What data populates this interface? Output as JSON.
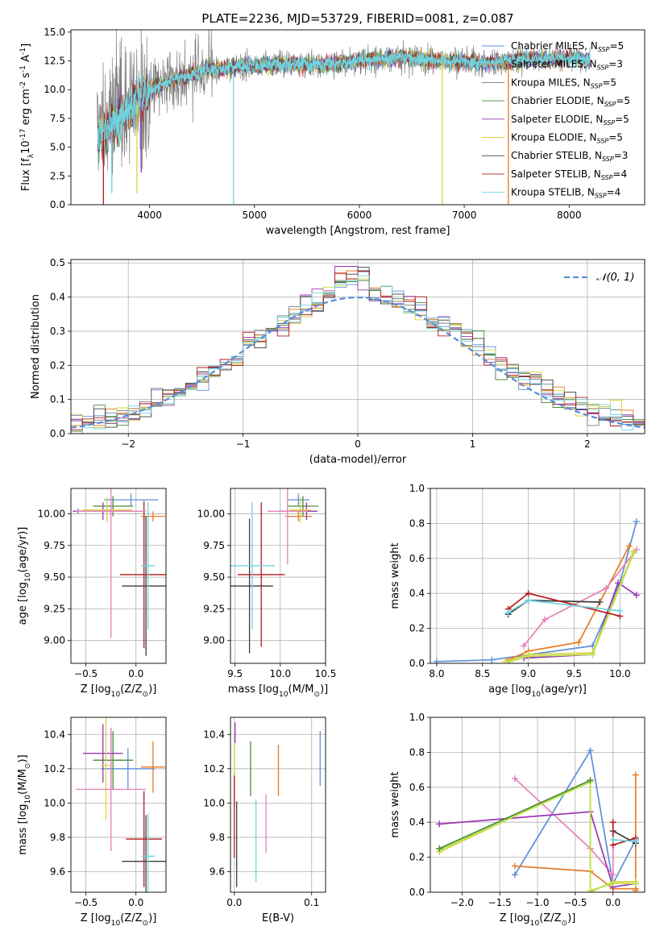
{
  "figure": {
    "title": "PLATE=2236, MJD=53729, FIBERID=0081, z=0.087"
  },
  "colors": {
    "Chabrier MILES": "#5b8fd9",
    "Salpeter MILES": "#e87a23",
    "Kroupa MILES": "#7a7a7a",
    "Chabrier ELODIE": "#4c8a3a",
    "Salpeter ELODIE": "#9a35b5",
    "Kroupa ELODIE": "#d8d33f",
    "Chabrier STELIB": "#3d3d3d",
    "Salpeter STELIB": "#b31b1b",
    "Kroupa STELIB": "#6fd3e0",
    "pink": "#e67fb8",
    "lime": "#b8e34a",
    "gaussian": "#5b8fd9"
  },
  "chart_data": [
    {
      "id": "spectrum",
      "type": "line",
      "xlabel": "wavelength [Angstrom, rest frame]",
      "ylabel": "Flux [f$_\\lambda$10$^{-17}$ erg cm$^{-2}$ s$^{-1}$ A$^{-1}$]",
      "xlim": [
        3250,
        8720
      ],
      "ylim": [
        0,
        15.2
      ],
      "xticks": [
        4000,
        5000,
        6000,
        7000,
        8000
      ],
      "yticks": [
        0.0,
        2.5,
        5.0,
        7.5,
        10.0,
        12.5,
        15.0
      ],
      "xtick_labels": [
        "4000",
        "5000",
        "6000",
        "7000",
        "8000"
      ],
      "ytick_labels": [
        "0.0",
        "2.5",
        "5.0",
        "7.5",
        "10.0",
        "12.5",
        "15.0"
      ],
      "legend_position": "right",
      "legend": [
        {
          "text": "Chabrier MILES, N",
          "sub": "SSP",
          "suffix": "=5",
          "key": "Chabrier MILES"
        },
        {
          "text": "Salpeter MILES, N",
          "sub": "SSP",
          "suffix": "=3",
          "key": "Salpeter MILES"
        },
        {
          "text": "Kroupa MILES, N",
          "sub": "SSP",
          "suffix": "=5",
          "key": "Kroupa MILES"
        },
        {
          "text": "Chabrier ELODIE, N",
          "sub": "SSP",
          "suffix": "=5",
          "key": "Chabrier ELODIE"
        },
        {
          "text": "Salpeter ELODIE, N",
          "sub": "SSP",
          "suffix": "=5",
          "key": "Salpeter ELODIE"
        },
        {
          "text": "Kroupa ELODIE, N",
          "sub": "SSP",
          "suffix": "=5",
          "key": "Kroupa ELODIE"
        },
        {
          "text": "Chabrier STELIB, N",
          "sub": "SSP",
          "suffix": "=3",
          "key": "Chabrier STELIB"
        },
        {
          "text": "Salpeter STELIB, N",
          "sub": "SSP",
          "suffix": "=4",
          "key": "Salpeter STELIB"
        },
        {
          "text": "Kroupa STELIB, N",
          "sub": "SSP",
          "suffix": "=4",
          "key": "Kroupa STELIB"
        }
      ],
      "continuum": [
        [
          3500,
          6.0
        ],
        [
          3650,
          6.8
        ],
        [
          3800,
          8.3
        ],
        [
          3950,
          9.5
        ],
        [
          4100,
          10.5
        ],
        [
          4300,
          11.0
        ],
        [
          4500,
          11.6
        ],
        [
          4800,
          12.0
        ],
        [
          5200,
          12.2
        ],
        [
          5600,
          12.2
        ],
        [
          6000,
          12.5
        ],
        [
          6400,
          12.8
        ],
        [
          6800,
          12.5
        ],
        [
          7200,
          12.3
        ],
        [
          7600,
          12.6
        ],
        [
          8000,
          12.7
        ],
        [
          8200,
          12.6
        ]
      ],
      "data_start": 3500,
      "data_end": 8200,
      "dips": [
        {
          "x": 3560,
          "y": 0.0,
          "series": "Salpeter STELIB"
        },
        {
          "x": 3640,
          "y": 1.0,
          "series": "Kroupa STELIB"
        },
        {
          "x": 3880,
          "y": 1.0,
          "series": "Kroupa ELODIE"
        },
        {
          "x": 3920,
          "y": 2.8,
          "series": "Salpeter ELODIE"
        },
        {
          "x": 4800,
          "y": 0.0,
          "series": "Kroupa STELIB"
        },
        {
          "x": 6790,
          "y": 0.0,
          "series": "Kroupa ELODIE"
        },
        {
          "x": 7420,
          "y": 0.0,
          "series": "Salpeter MILES"
        }
      ]
    },
    {
      "id": "residuals",
      "type": "line",
      "xlabel": "(data-model)/error",
      "ylabel": "Normed distribution",
      "xlim": [
        -2.5,
        2.5
      ],
      "ylim": [
        0,
        0.51
      ],
      "xticks": [
        -2,
        -1,
        0,
        1,
        2
      ],
      "yticks": [
        0.0,
        0.1,
        0.2,
        0.3,
        0.4,
        0.5
      ],
      "xtick_labels": [
        "−2",
        "−1",
        "0",
        "1",
        "2"
      ],
      "ytick_labels": [
        "0.0",
        "0.1",
        "0.2",
        "0.3",
        "0.4",
        "0.5"
      ],
      "legend_position": "top-right",
      "legend_label": "𝒩(0, 1)",
      "bin_width": 0.1,
      "bin_start": -2.5,
      "n_bins": 50,
      "series_keys": [
        "Chabrier MILES",
        "Salpeter MILES",
        "Kroupa MILES",
        "Chabrier ELODIE",
        "Salpeter ELODIE",
        "Kroupa ELODIE",
        "Chabrier STELIB",
        "Salpeter STELIB",
        "Kroupa STELIB"
      ]
    },
    {
      "id": "age_vs_Z",
      "type": "scatter",
      "xlabel": "Z [log$_{10}$(Z/Z$_\\odot$)]",
      "ylabel": "age  [log$_{10}$(age/yr)]",
      "xlim": [
        -0.65,
        0.3
      ],
      "ylim": [
        8.82,
        10.2
      ],
      "xticks": [
        -0.5,
        0.0
      ],
      "yticks": [
        9.0,
        9.25,
        9.5,
        9.75,
        10.0
      ],
      "xtick_labels": [
        "−0.5",
        "0.0"
      ],
      "ytick_labels": [
        "9.00",
        "9.25",
        "9.50",
        "9.75",
        "10.00"
      ],
      "points": [
        {
          "series": "Chabrier MILES",
          "x": -0.05,
          "xerr": 0.27,
          "y": 10.11,
          "yerr": 0.05
        },
        {
          "series": "Salpeter MILES",
          "x": 0.17,
          "xerr": 0.12,
          "y": 9.98,
          "yerr": 0.04
        },
        {
          "series": "Kroupa MILES",
          "x": -0.58,
          "xerr": 0.02,
          "y": 10.02,
          "yerr": 0.02
        },
        {
          "series": "Chabrier ELODIE",
          "x": -0.23,
          "xerr": 0.2,
          "y": 10.06,
          "yerr": 0.08
        },
        {
          "series": "Salpeter ELODIE",
          "x": -0.33,
          "xerr": 0.3,
          "y": 10.02,
          "yerr": 0.07
        },
        {
          "series": "Kroupa ELODIE",
          "x": -0.29,
          "xerr": 0.25,
          "y": 10.03,
          "yerr": 0.1
        },
        {
          "series": "Chabrier STELIB",
          "x": 0.1,
          "xerr": 0.24,
          "y": 9.43,
          "yerr": 0.55
        },
        {
          "series": "Salpeter STELIB",
          "x": 0.08,
          "xerr": 0.24,
          "y": 9.52,
          "yerr": 0.58
        },
        {
          "series": "Kroupa STELIB",
          "x": 0.12,
          "xerr": 0.07,
          "y": 9.59,
          "yerr": 0.5
        },
        {
          "series": "pink",
          "x": -0.25,
          "xerr": 0.35,
          "y": 10.02,
          "yerr": 1.0
        }
      ]
    },
    {
      "id": "age_vs_mass",
      "type": "scatter",
      "xlabel": "mass [log$_{10}$(M/M$_\\odot$)]",
      "ylabel": "",
      "xlim": [
        9.45,
        10.5
      ],
      "ylim": [
        8.82,
        10.2
      ],
      "xticks": [
        9.5,
        10.0,
        10.5
      ],
      "yticks": [
        9.0,
        9.25,
        9.5,
        9.75,
        10.0
      ],
      "xtick_labels": [
        "9.5",
        "10.0",
        "10.5"
      ],
      "ytick_labels": [
        "9.00",
        "9.25",
        "9.50",
        "9.75",
        "10.00"
      ],
      "points": [
        {
          "series": "Chabrier MILES",
          "x": 10.2,
          "xerr": 0.12,
          "y": 10.11,
          "yerr": 0.05
        },
        {
          "series": "Salpeter MILES",
          "x": 10.2,
          "xerr": 0.15,
          "y": 9.98,
          "yerr": 0.04
        },
        {
          "series": "Kroupa MILES",
          "x": 10.08,
          "xerr": 0.1,
          "y": 10.02,
          "yerr": 0.02
        },
        {
          "series": "Chabrier ELODIE",
          "x": 10.25,
          "xerr": 0.17,
          "y": 10.06,
          "yerr": 0.08
        },
        {
          "series": "Salpeter ELODIE",
          "x": 10.29,
          "xerr": 0.12,
          "y": 10.02,
          "yerr": 0.07
        },
        {
          "series": "Kroupa ELODIE",
          "x": 10.22,
          "xerr": 0.12,
          "y": 10.03,
          "yerr": 0.1
        },
        {
          "series": "Chabrier STELIB",
          "x": 9.66,
          "xerr": 0.26,
          "y": 9.43,
          "yerr": 0.53
        },
        {
          "series": "Salpeter STELIB",
          "x": 9.79,
          "xerr": 0.26,
          "y": 9.52,
          "yerr": 0.57
        },
        {
          "series": "Kroupa STELIB",
          "x": 9.69,
          "xerr": 0.25,
          "y": 9.59,
          "yerr": 0.5
        },
        {
          "series": "pink",
          "x": 10.08,
          "xerr": 0.22,
          "y": 10.02,
          "yerr": 0.42
        }
      ]
    },
    {
      "id": "weight_vs_age",
      "type": "line",
      "xlabel": "age  [log$_{10}$(age/yr)]",
      "ylabel": "mass weight",
      "xlim": [
        7.93,
        10.27
      ],
      "ylim": [
        0,
        1.0
      ],
      "xticks": [
        8.0,
        8.5,
        9.0,
        9.5,
        10.0
      ],
      "yticks": [
        0.0,
        0.2,
        0.4,
        0.6,
        0.8,
        1.0
      ],
      "xtick_labels": [
        "8.0",
        "8.5",
        "9.0",
        "9.5",
        "10.0"
      ],
      "ytick_labels": [
        "0.0",
        "0.2",
        "0.4",
        "0.6",
        "0.8",
        "1.0"
      ],
      "series": [
        {
          "key": "Chabrier MILES",
          "x": [
            8.0,
            8.6,
            9.7,
            10.0,
            10.18
          ],
          "y": [
            0.01,
            0.02,
            0.1,
            0.46,
            0.81
          ]
        },
        {
          "key": "Salpeter MILES",
          "x": [
            8.78,
            9.0,
            9.55,
            10.1
          ],
          "y": [
            0.02,
            0.07,
            0.12,
            0.67
          ]
        },
        {
          "key": "pink",
          "x": [
            8.95,
            9.18,
            9.85,
            10.18
          ],
          "y": [
            0.1,
            0.25,
            0.43,
            0.65
          ]
        },
        {
          "key": "Salpeter ELODIE",
          "x": [
            8.95,
            9.7,
            9.98,
            10.18
          ],
          "y": [
            0.03,
            0.05,
            0.46,
            0.39
          ]
        },
        {
          "key": "Kroupa ELODIE",
          "x": [
            8.75,
            9.0,
            9.7,
            10.15
          ],
          "y": [
            0.01,
            0.05,
            0.06,
            0.64
          ]
        },
        {
          "key": "lime",
          "x": [
            8.8,
            9.0,
            9.7,
            10.15
          ],
          "y": [
            0.01,
            0.04,
            0.05,
            0.63
          ]
        },
        {
          "key": "Chabrier STELIB",
          "x": [
            8.78,
            9.0,
            9.78
          ],
          "y": [
            0.28,
            0.36,
            0.35
          ]
        },
        {
          "key": "Salpeter STELIB",
          "x": [
            8.78,
            9.0,
            10.0
          ],
          "y": [
            0.31,
            0.4,
            0.27
          ]
        },
        {
          "key": "Kroupa STELIB",
          "x": [
            8.78,
            9.0,
            10.0
          ],
          "y": [
            0.29,
            0.36,
            0.3
          ]
        }
      ]
    },
    {
      "id": "mass_vs_Z",
      "type": "scatter",
      "xlabel": "Z [log$_{10}$(Z/Z$_\\odot$)]",
      "ylabel": "mass [log$_{10}$(M/M$_\\odot$)]",
      "xlim": [
        -0.65,
        0.3
      ],
      "ylim": [
        9.48,
        10.5
      ],
      "xticks": [
        -0.5,
        0.0
      ],
      "yticks": [
        9.6,
        9.8,
        10.0,
        10.2,
        10.4
      ],
      "xtick_labels": [
        "−0.5",
        "0.0"
      ],
      "ytick_labels": [
        "9.6",
        "9.8",
        "10.0",
        "10.2",
        "10.4"
      ],
      "points": [
        {
          "series": "Chabrier MILES",
          "x": -0.08,
          "xerr": 0.27,
          "y": 10.2,
          "yerr": 0.12
        },
        {
          "series": "Salpeter MILES",
          "x": 0.17,
          "xerr": 0.12,
          "y": 10.21,
          "yerr": 0.15
        },
        {
          "series": "Kroupa MILES",
          "x": -0.25,
          "xerr": 0.1,
          "y": 10.25,
          "yerr": 0.17
        },
        {
          "series": "Chabrier ELODIE",
          "x": -0.23,
          "xerr": 0.2,
          "y": 10.25,
          "yerr": 0.17
        },
        {
          "series": "Salpeter ELODIE",
          "x": -0.33,
          "xerr": 0.2,
          "y": 10.29,
          "yerr": 0.17
        },
        {
          "series": "Kroupa ELODIE",
          "x": -0.3,
          "xerr": 0.05,
          "y": 10.22,
          "yerr": 0.32
        },
        {
          "series": "Chabrier STELIB",
          "x": 0.1,
          "xerr": 0.24,
          "y": 9.66,
          "yerr": 0.27
        },
        {
          "series": "Salpeter STELIB",
          "x": 0.08,
          "xerr": 0.18,
          "y": 9.79,
          "yerr": 0.28
        },
        {
          "series": "Kroupa STELIB",
          "x": 0.12,
          "xerr": 0.07,
          "y": 9.69,
          "yerr": 0.25
        },
        {
          "series": "pink",
          "x": -0.25,
          "xerr": 0.35,
          "y": 10.08,
          "yerr": 0.36
        }
      ]
    },
    {
      "id": "mass_vs_ebv",
      "type": "scatter",
      "xlabel": "E(B-V)",
      "ylabel": "",
      "xlim": [
        -0.005,
        0.118
      ],
      "ylim": [
        9.48,
        10.5
      ],
      "xticks": [
        0.0,
        0.1
      ],
      "yticks": [
        9.6,
        9.8,
        10.0,
        10.2,
        10.4
      ],
      "xtick_labels": [
        "0.0",
        "0.1"
      ],
      "ytick_labels": [
        "9.6",
        "9.8",
        "10.0",
        "10.2",
        "10.4"
      ],
      "points": [
        {
          "series": "Chabrier MILES",
          "x": 0.111,
          "xerr": 0,
          "y": 10.26,
          "yerr": 0.16
        },
        {
          "series": "Salpeter MILES",
          "x": 0.057,
          "xerr": 0,
          "y": 10.19,
          "yerr": 0.15
        },
        {
          "series": "Kroupa MILES",
          "x": 0.0,
          "xerr": 0,
          "y": 10.08,
          "yerr": 0.1
        },
        {
          "series": "Chabrier ELODIE",
          "x": 0.021,
          "xerr": 0,
          "y": 10.2,
          "yerr": 0.16
        },
        {
          "series": "Salpeter ELODIE",
          "x": 0.001,
          "xerr": 0,
          "y": 10.41,
          "yerr": 0.06
        },
        {
          "series": "Kroupa ELODIE",
          "x": 0.0,
          "xerr": 0,
          "y": 10.23,
          "yerr": 0.12
        },
        {
          "series": "Chabrier STELIB",
          "x": 0.003,
          "xerr": 0,
          "y": 9.76,
          "yerr": 0.25
        },
        {
          "series": "Salpeter STELIB",
          "x": 0.0,
          "xerr": 0,
          "y": 9.92,
          "yerr": 0.24
        },
        {
          "series": "Kroupa STELIB",
          "x": 0.028,
          "xerr": 0,
          "y": 9.78,
          "yerr": 0.24
        },
        {
          "series": "pink",
          "x": 0.041,
          "xerr": 0,
          "y": 9.88,
          "yerr": 0.17
        }
      ]
    },
    {
      "id": "weight_vs_Z",
      "type": "line",
      "xlabel": "Z [log$_{10}$(Z/Z$_\\odot$)]",
      "ylabel": "mass weight",
      "xlim": [
        -2.42,
        0.42
      ],
      "ylim": [
        0,
        1.0
      ],
      "xticks": [
        -2.0,
        -1.5,
        -1.0,
        -0.5,
        0.0
      ],
      "yticks": [
        0.0,
        0.2,
        0.4,
        0.6,
        0.8,
        1.0
      ],
      "xtick_labels": [
        "−2.0",
        "−1.5",
        "−1.0",
        "−0.5",
        "0.0"
      ],
      "ytick_labels": [
        "0.0",
        "0.2",
        "0.4",
        "0.6",
        "0.8",
        "1.0"
      ],
      "series": [
        {
          "key": "Chabrier MILES",
          "x": [
            -1.3,
            -0.3,
            0.0,
            0.3
          ],
          "y": [
            0.1,
            0.81,
            0.05,
            0.3
          ]
        },
        {
          "key": "Salpeter MILES",
          "x": [
            -1.3,
            -0.3,
            0.0,
            0.3,
            0.3,
            0.3
          ],
          "y": [
            0.15,
            0.12,
            0.02,
            0.02,
            0.67,
            0.01
          ]
        },
        {
          "key": "pink",
          "x": [
            -1.3,
            -0.3,
            0.0,
            0.0
          ],
          "y": [
            0.65,
            0.25,
            0.1,
            0.4
          ]
        },
        {
          "key": "Salpeter ELODIE",
          "x": [
            -2.3,
            -0.3,
            0.0,
            0.3
          ],
          "y": [
            0.39,
            0.46,
            0.03,
            0.05
          ]
        },
        {
          "key": "Kroupa ELODIE",
          "x": [
            -2.3,
            -0.3,
            -0.3,
            0.0,
            0.3
          ],
          "y": [
            0.23,
            0.64,
            0.0,
            0.06,
            0.06
          ]
        },
        {
          "key": "lime",
          "x": [
            -2.3,
            -0.3,
            -0.3,
            0.0,
            0.3
          ],
          "y": [
            0.24,
            0.63,
            0.01,
            0.05,
            0.05
          ]
        },
        {
          "key": "Chabrier ELODIE",
          "x": [
            -2.3,
            -0.3
          ],
          "y": [
            0.25,
            0.64
          ]
        },
        {
          "key": "Chabrier STELIB",
          "x": [
            0.0,
            0.3
          ],
          "y": [
            0.35,
            0.28
          ]
        },
        {
          "key": "Salpeter STELIB",
          "x": [
            0.0,
            0.0,
            0.3
          ],
          "y": [
            0.4,
            0.27,
            0.31
          ]
        },
        {
          "key": "Kroupa STELIB",
          "x": [
            0.0,
            0.3
          ],
          "y": [
            0.3,
            0.29
          ]
        }
      ]
    }
  ]
}
